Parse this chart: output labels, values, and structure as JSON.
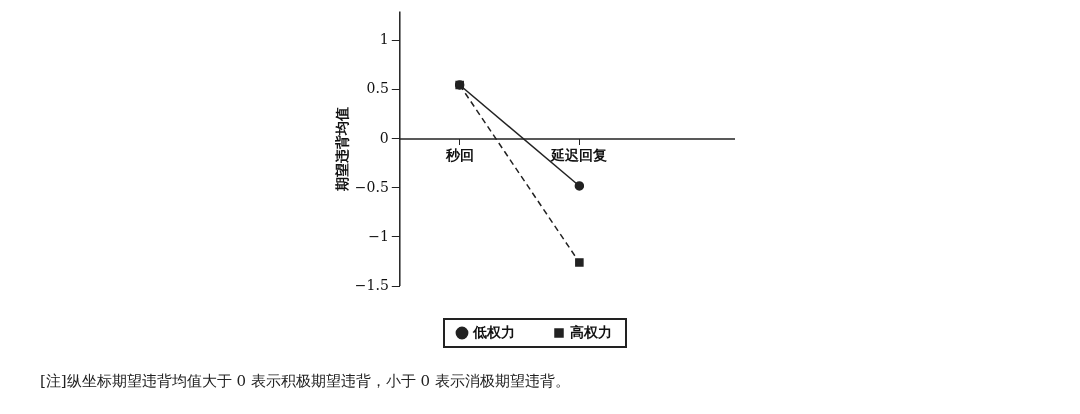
{
  "chart_data": {
    "type": "line",
    "categories": [
      "秒回",
      "延迟回复"
    ],
    "ylabel": "期望违背均值",
    "ylim": [
      -1.5,
      1.3
    ],
    "yticks": [
      1,
      0.5,
      0,
      -0.5,
      -1,
      -1.5
    ],
    "series": [
      {
        "name": "低权力",
        "color": "#222222",
        "values": [
          0.55,
          -0.48
        ],
        "marker": "circle",
        "line_style": "solid"
      },
      {
        "name": "高权力",
        "color": "#222222",
        "values": [
          0.55,
          -1.26
        ],
        "marker": "square",
        "line_style": "dashed"
      }
    ],
    "grid": false,
    "legend": "bottom",
    "annotations": [
      "[注]纵坐标期望违背均值大于 0 表示积极期望违背，小于 0 表示消极期望违背。"
    ]
  }
}
